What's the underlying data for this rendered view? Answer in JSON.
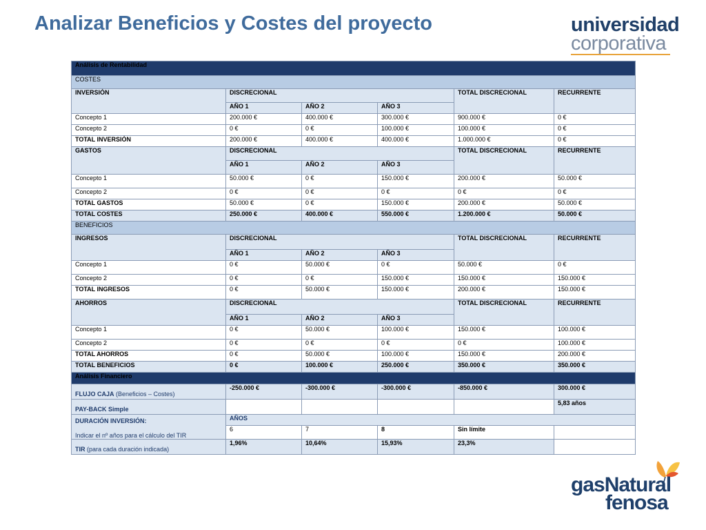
{
  "title": "Analizar Beneficios y Costes del proyecto",
  "logo_top": {
    "line1": "universidad",
    "line2": "corporativa"
  },
  "logo_bottom": {
    "line1": "gasNatural",
    "line2": "fenosa"
  },
  "table": {
    "rentabilidad": "Análisis de Rentabilidad",
    "costes": "COSTES",
    "beneficios": "BENEFICIOS",
    "financiero": "Análisis Financiero",
    "h_discrecional": "DISCRECIONAL",
    "h_total_discrecional": "TOTAL DISCRECIONAL",
    "h_recurrente": "RECURRENTE",
    "h_ano1": "AÑO 1",
    "h_ano2": "AÑO 2",
    "h_ano3": "AÑO 3",
    "inversion": {
      "label": "INVERSIÓN",
      "rows": [
        {
          "label": "Concepto 1",
          "v": [
            "200.000 €",
            "400.000 €",
            "300.000 €",
            "900.000 €",
            "0 €"
          ]
        },
        {
          "label": "Concepto 2",
          "v": [
            "0 €",
            "0 €",
            "100.000 €",
            "100.000 €",
            "0 €"
          ]
        },
        {
          "label": "TOTAL INVERSIÓN",
          "v": [
            "200.000 €",
            "400.000 €",
            "400.000 €",
            "1.000.000 €",
            "0 €"
          ]
        }
      ]
    },
    "gastos": {
      "label": "GASTOS",
      "rows": [
        {
          "label": "Concepto 1",
          "v": [
            "50.000 €",
            "0 €",
            "150.000 €",
            "200.000 €",
            "50.000 €"
          ]
        },
        {
          "label": "Concepto 2",
          "v": [
            "0 €",
            "0 €",
            "0 €",
            "0 €",
            "0 €"
          ]
        },
        {
          "label": "TOTAL GASTOS",
          "v": [
            "50.000 €",
            "0 €",
            "150.000 €",
            "200.000 €",
            "50.000 €"
          ]
        }
      ]
    },
    "total_costes": {
      "label": "TOTAL COSTES",
      "v": [
        "250.000 €",
        "400.000 €",
        "550.000 €",
        "1.200.000 €",
        "50.000 €"
      ]
    },
    "ingresos": {
      "label": "INGRESOS",
      "rows": [
        {
          "label": "Concepto 1",
          "v": [
            "0 €",
            "50.000 €",
            "0 €",
            "50.000 €",
            "0 €"
          ]
        },
        {
          "label": "Concepto 2",
          "v": [
            "0 €",
            "0 €",
            "150.000 €",
            "150.000 €",
            "150.000 €"
          ]
        },
        {
          "label": "TOTAL INGRESOS",
          "v": [
            "0 €",
            "50.000 €",
            "150.000 €",
            "200.000 €",
            "150.000 €"
          ]
        }
      ]
    },
    "ahorros": {
      "label": "AHORROS",
      "rows": [
        {
          "label": "Concepto 1",
          "v": [
            "0 €",
            "50.000 €",
            "100.000 €",
            "150.000 €",
            "100.000 €"
          ]
        },
        {
          "label": "Concepto 2",
          "v": [
            "0 €",
            "0 €",
            "0 €",
            "0 €",
            "100.000 €"
          ]
        },
        {
          "label": "TOTAL AHORROS",
          "v": [
            "0 €",
            "50.000 €",
            "100.000 €",
            "150.000 €",
            "200.000 €"
          ]
        }
      ]
    },
    "total_beneficios": {
      "label": "TOTAL BENEFICIOS",
      "v": [
        "0 €",
        "100.000 €",
        "250.000 €",
        "350.000 €",
        "350.000 €"
      ]
    },
    "flujo": {
      "label_bold": "FLUJO CAJA",
      "label_rest": " (Beneficios – Costes)",
      "v": [
        "-250.000 €",
        "-300.000 €",
        "-300.000 €",
        "-850.000 €",
        "300.000 €"
      ]
    },
    "payback": {
      "label": "PAY-BACK Simple",
      "v": "5,83 años"
    },
    "duracion": {
      "label": "DURACIÓN INVERSIÓN:",
      "sub": "Indicar el nº años para el cálculo del TIR",
      "anos": "AÑOS",
      "v": [
        "6",
        "7",
        "8",
        "Sin límite"
      ]
    },
    "tir": {
      "label_bold": "TIR",
      "label_rest": "  (para cada duración indicada)",
      "v": [
        "1,96%",
        "10,64%",
        "15,93%",
        "23,3%"
      ]
    }
  }
}
